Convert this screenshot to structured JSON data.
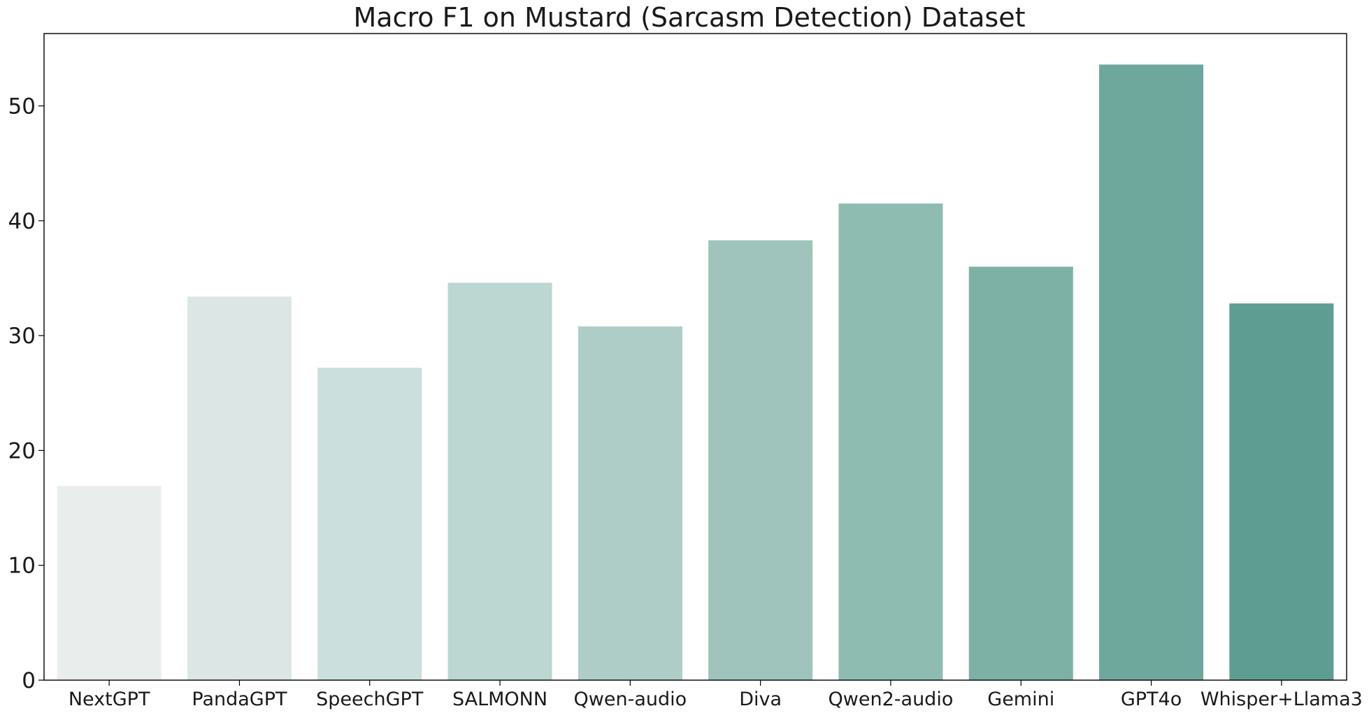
{
  "chart_data": {
    "type": "bar",
    "title": "Macro F1 on Mustard (Sarcasm Detection) Dataset",
    "xlabel": "",
    "ylabel": "",
    "categories": [
      "NextGPT",
      "PandaGPT",
      "SpeechGPT",
      "SALMONN",
      "Qwen-audio",
      "Diva",
      "Qwen2-audio",
      "Gemini",
      "GPT4o",
      "Whisper+Llama3"
    ],
    "values": [
      16.9,
      33.4,
      27.2,
      34.6,
      30.8,
      38.3,
      41.5,
      36.0,
      53.6,
      32.8
    ],
    "colors": [
      "#e9eeed",
      "#dce7e5",
      "#cbe0dc",
      "#bcd7d2",
      "#adcdc6",
      "#9fc4bb",
      "#8fbcb1",
      "#7eb1a5",
      "#6ea89c",
      "#5e9e92"
    ],
    "ylim": [
      0,
      56.3
    ],
    "yticks": [
      0,
      10,
      20,
      30,
      40,
      50
    ],
    "grid": false,
    "legend": "none"
  }
}
